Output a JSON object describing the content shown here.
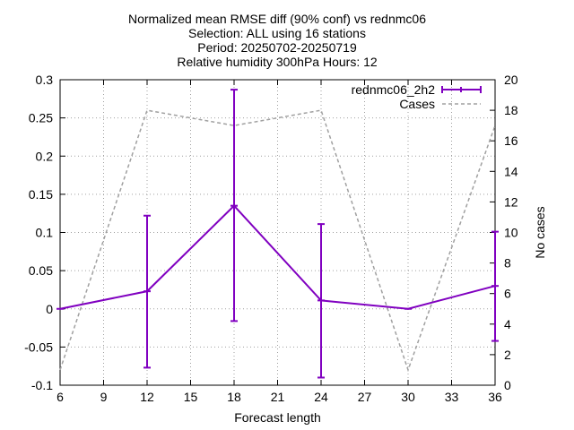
{
  "chart_data": {
    "type": "line",
    "title_lines": [
      "Normalized mean RMSE diff (90% conf) vs rednmc06",
      "Selection: ALL using    16 stations",
      "Period: 20250702-20250719",
      "Relative humidity 300hPa   Hours: 12"
    ],
    "xlabel": "Forecast length",
    "ylabel_right": "No cases",
    "xlim": [
      6,
      36
    ],
    "ylim": [
      -0.1,
      0.3
    ],
    "y2lim": [
      0,
      20
    ],
    "xticks": [
      "6",
      "9",
      "12",
      "15",
      "18",
      "21",
      "24",
      "27",
      "30",
      "33",
      "36"
    ],
    "yticks": [
      "-0.1",
      "-0.05",
      "0",
      "0.05",
      "0.1",
      "0.15",
      "0.2",
      "0.25",
      "0.3"
    ],
    "y2ticks": [
      "0",
      "2",
      "4",
      "6",
      "8",
      "10",
      "12",
      "14",
      "16",
      "18",
      "20"
    ],
    "grid": true,
    "legend_position": "top-right",
    "series": [
      {
        "name": "rednmc06_2h2",
        "axis": "left",
        "style": "line-errorbars",
        "color": "#8000c0",
        "x": [
          6,
          12,
          18,
          24,
          30,
          36
        ],
        "y": [
          0.0,
          0.023,
          0.135,
          0.011,
          0.0,
          0.03
        ],
        "err_low": [
          null,
          -0.077,
          -0.016,
          -0.09,
          null,
          -0.042
        ],
        "err_high": [
          null,
          0.122,
          0.287,
          0.111,
          null,
          0.101
        ]
      },
      {
        "name": "Cases",
        "axis": "right",
        "style": "dashed",
        "color": "#a0a0a0",
        "x": [
          6,
          12,
          18,
          24,
          30,
          36
        ],
        "y": [
          1,
          18,
          17,
          18,
          1,
          17
        ]
      }
    ]
  }
}
